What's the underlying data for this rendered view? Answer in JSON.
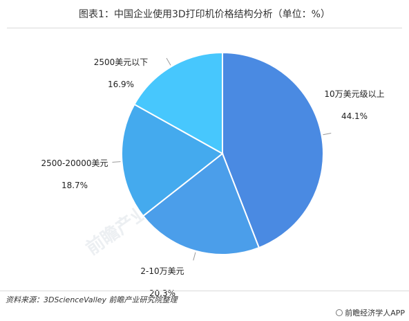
{
  "title": "图表1：中国企业使用3D打印机价格结构分析（单位：%）",
  "chart_data": {
    "type": "pie",
    "title": "图表1：中国企业使用3D打印机价格结构分析（单位：%）",
    "slices": [
      {
        "label": "10万美元级以上",
        "value": 44.1,
        "value_label": "44.1%",
        "color": "#4a8ae2"
      },
      {
        "label": "2-10万美元",
        "value": 20.3,
        "value_label": "20.3%",
        "color": "#4b9eea"
      },
      {
        "label": "2500-20000美元",
        "value": 18.7,
        "value_label": "18.7%",
        "color": "#44aaee"
      },
      {
        "label": "2500美元以下",
        "value": 16.9,
        "value_label": "16.9%",
        "color": "#47c7fd"
      }
    ]
  },
  "watermark": "前瞻产业研究院",
  "source": "资料来源：3DScienceValley 前瞻产业研究院整理",
  "brand": "前瞻经济学人APP"
}
